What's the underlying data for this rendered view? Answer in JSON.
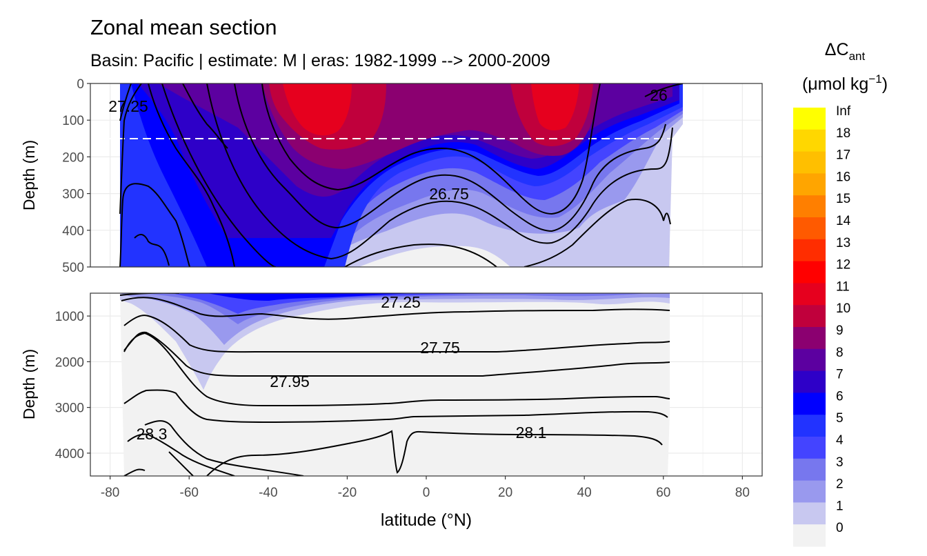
{
  "chart_data": {
    "type": "contour-section",
    "title": "Zonal mean section",
    "subtitle": "Basin: Pacific | estimate: M  | eras: 1982-1999 --> 2000-2009",
    "xlabel": "latitude (°N)",
    "xlim": [
      -85,
      85
    ],
    "xticks": [
      "-80",
      "-60",
      "-40",
      "-20",
      "0",
      "20",
      "40",
      "60",
      "80"
    ],
    "panels": [
      {
        "name": "upper",
        "ylabel": "Depth (m)",
        "ylim": [
          0,
          500
        ],
        "yticks": [
          "0",
          "100",
          "200",
          "300",
          "400",
          "500"
        ],
        "reference_depth_m": 150,
        "contour_labels": [
          "27.25",
          "26.75",
          "26"
        ]
      },
      {
        "name": "lower",
        "ylabel": "Depth (m)",
        "ylim": [
          500,
          4500
        ],
        "yticks": [
          "1000",
          "2000",
          "3000",
          "4000"
        ],
        "contour_labels": [
          "27.25",
          "27.75",
          "27.95",
          "28.3",
          "28.1"
        ]
      }
    ],
    "legend": {
      "title_main": "ΔC",
      "title_sub": "ant",
      "unit_prefix": "(μmol kg",
      "unit_sup": "−1",
      "unit_suffix": ")",
      "labels": [
        "Inf",
        "18",
        "17",
        "16",
        "15",
        "14",
        "13",
        "12",
        "11",
        "10",
        "9",
        "8",
        "7",
        "6",
        "5",
        "4",
        "3",
        "2",
        "1",
        "0"
      ],
      "colors": [
        "#ffff00",
        "#ffd700",
        "#ffbf00",
        "#ffa500",
        "#ff7f00",
        "#ff5a00",
        "#ff2d00",
        "#ff0000",
        "#e6001e",
        "#c0003c",
        "#8b0070",
        "#5c00a0",
        "#2e00c8",
        "#0000ff",
        "#2233ff",
        "#4444ff",
        "#7777ee",
        "#9999ee",
        "#c8c8f0",
        "#f2f2f2"
      ]
    }
  }
}
